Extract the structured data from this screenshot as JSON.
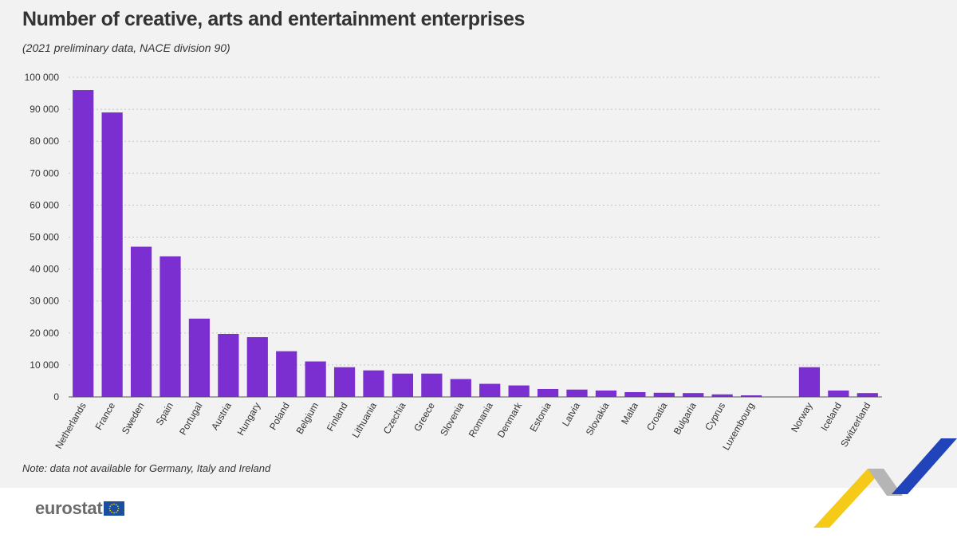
{
  "title": "Number of creative, arts and entertainment enterprises",
  "subtitle": "(2021 preliminary data, NACE division 90)",
  "note": "Note: data not available for Germany, Italy and Ireland",
  "logo_text": "eurostat",
  "colors": {
    "bar": "#7b2fd1",
    "panel": "#f2f2f2",
    "text": "#333333",
    "logo_text": "#6b6b6b",
    "eu_blue": "#1a4fa0",
    "decor_blue": "#2244bb",
    "decor_yellow": "#f5c400",
    "decor_grey": "#b5b5b5"
  },
  "chart_data": {
    "type": "bar",
    "categories": [
      "Netherlands",
      "France",
      "Sweden",
      "Spain",
      "Portugal",
      "Austria",
      "Hungary",
      "Poland",
      "Belgium",
      "Finland",
      "Lithuania",
      "Czechia",
      "Greece",
      "Slovenia",
      "Romania",
      "Denmark",
      "Estonia",
      "Latvia",
      "Slovakia",
      "Malta",
      "Croatia",
      "Bulgaria",
      "Cyprus",
      "Luxembourg",
      "",
      "Norway",
      "Iceland",
      "Switzerland"
    ],
    "values": [
      96000,
      89000,
      47000,
      44000,
      24500,
      19700,
      18700,
      14300,
      11100,
      9300,
      8300,
      7300,
      7300,
      5600,
      4100,
      3600,
      2500,
      2300,
      2000,
      1500,
      1300,
      1200,
      800,
      500,
      null,
      9300,
      2000,
      1200
    ],
    "ylim": [
      0,
      100000
    ],
    "yticks": [
      0,
      10000,
      20000,
      30000,
      40000,
      50000,
      60000,
      70000,
      80000,
      90000,
      100000
    ],
    "ytick_labels": [
      "0",
      "10 000",
      "20 000",
      "30 000",
      "40 000",
      "50 000",
      "60 000",
      "70 000",
      "80 000",
      "90 000",
      "100 000"
    ],
    "grid": true,
    "legend": "none"
  }
}
